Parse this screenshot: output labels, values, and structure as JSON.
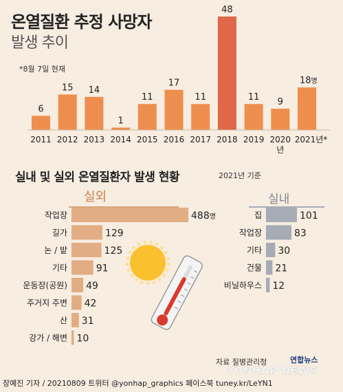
{
  "title": "온열질환 추정 사망자",
  "subtitle": "발생 추이",
  "note": "*8월 7일 현재",
  "chart_data": [
    {
      "type": "bar",
      "title": "온열질환 추정 사망자 발생 추이",
      "categories": [
        "2011",
        "2012",
        "2013",
        "2014",
        "2015",
        "2016",
        "2017",
        "2018",
        "2019",
        "2020",
        "2021"
      ],
      "category_labels": [
        "2011",
        "2012",
        "2013",
        "2014",
        "2015",
        "2016",
        "2017",
        "2018",
        "2019",
        "2020",
        "2021년*"
      ],
      "year_unit": "년",
      "value_unit": "명",
      "values": [
        6,
        15,
        14,
        1,
        11,
        17,
        11,
        48,
        11,
        9,
        18
      ],
      "colors": {
        "bar": "#ee8e4e",
        "highlight": "#e0674a"
      },
      "highlight_index": 7
    },
    {
      "type": "bar",
      "orientation": "horizontal",
      "title": "실외",
      "categories": [
        "작업장",
        "길가",
        "논/밭",
        "기타",
        "운동장(공원)",
        "주거지 주변",
        "산",
        "강가/해변"
      ],
      "category_labels": [
        "작업장",
        "길가",
        "논 / 밭",
        "기타",
        "운동장(공원)",
        "주거지 주변",
        "산",
        "강가 / 해변"
      ],
      "values": [
        488,
        129,
        125,
        91,
        49,
        42,
        31,
        10
      ],
      "value_unit": "명",
      "color": "#e2ad84"
    },
    {
      "type": "bar",
      "orientation": "horizontal",
      "title": "실내",
      "categories": [
        "집",
        "작업장",
        "기타",
        "건물",
        "비닐하우스"
      ],
      "values": [
        101,
        83,
        30,
        21,
        12
      ],
      "color": "#a6abb6"
    }
  ],
  "section2": {
    "title": "실내 및 실외 온열질환자 발생 현황",
    "basis": "2021년 기준",
    "outdoor_label": "실외",
    "indoor_label": "실내"
  },
  "source": "자료 질병관리청",
  "logo": "연합뉴스",
  "watermark": "YONHAP NEWS",
  "footer": "장예진 기자 / 20210809 트위터 @yonhap_graphics  페이스북 tuney.kr/LeYN1"
}
